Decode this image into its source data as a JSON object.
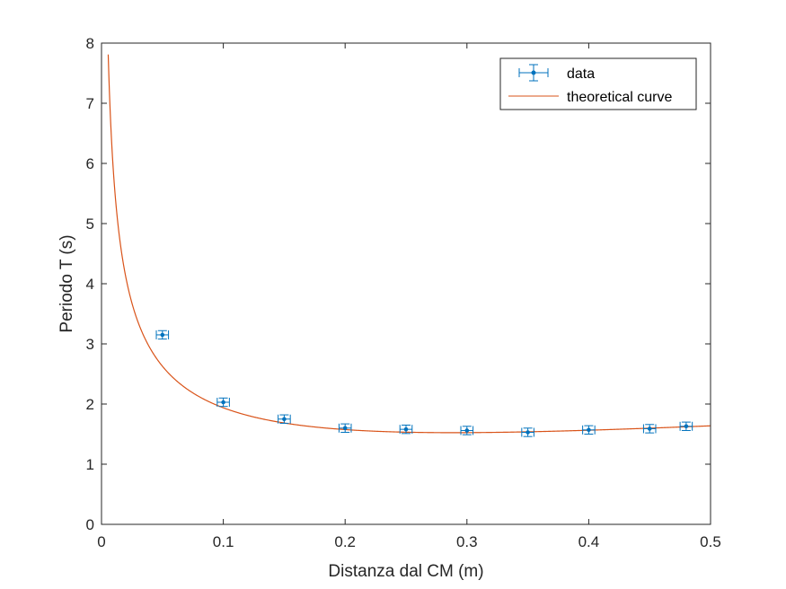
{
  "chart_data": {
    "type": "scatter",
    "title": "",
    "xlabel": "Distanza dal CM (m)",
    "ylabel": "Periodo T (s)",
    "xlim": [
      0,
      0.5
    ],
    "ylim": [
      0,
      8
    ],
    "x_ticks": [
      0,
      0.1,
      0.2,
      0.3,
      0.4,
      0.5
    ],
    "x_tick_labels": [
      "0",
      "0.1",
      "0.2",
      "0.3",
      "0.4",
      "0.5"
    ],
    "y_ticks": [
      0,
      1,
      2,
      3,
      4,
      5,
      6,
      7,
      8
    ],
    "y_tick_labels": [
      "0",
      "1",
      "2",
      "3",
      "4",
      "5",
      "6",
      "7",
      "8"
    ],
    "grid": false,
    "legend_position": "top-right",
    "series": [
      {
        "name": "data",
        "kind": "errorbar",
        "color": "#0072BD",
        "x": [
          0.05,
          0.1,
          0.15,
          0.2,
          0.25,
          0.3,
          0.35,
          0.4,
          0.45,
          0.48
        ],
        "y": [
          3.15,
          2.03,
          1.75,
          1.6,
          1.58,
          1.56,
          1.53,
          1.57,
          1.59,
          1.63
        ],
        "x_error": 0.005,
        "y_error": 0.07
      },
      {
        "name": "theoretical curve",
        "kind": "line",
        "color": "#D95319",
        "model": "T = 2*pi*sqrt((a^2 + d^2)/(g*d))",
        "g": 9.81,
        "a": 0.2887
      }
    ]
  }
}
